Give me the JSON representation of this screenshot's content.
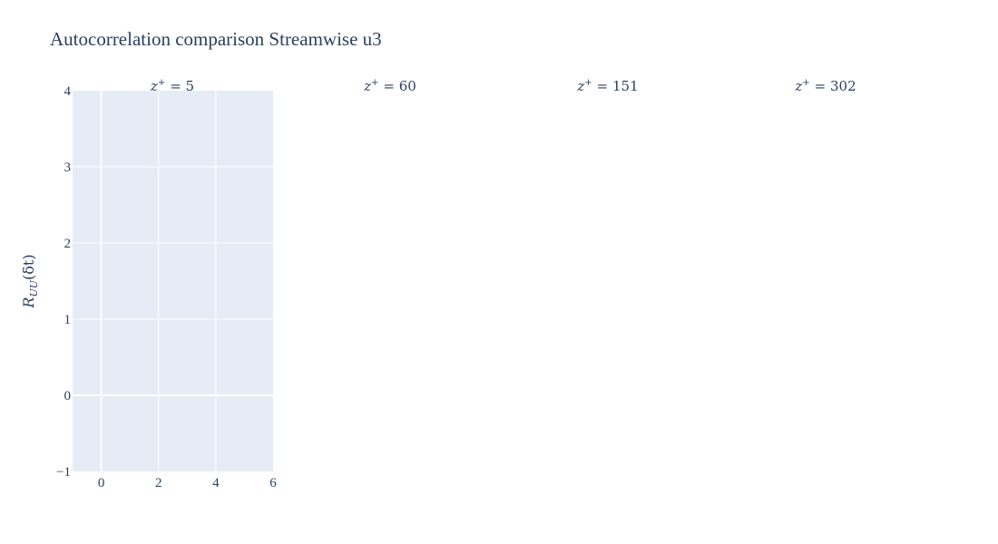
{
  "chart_data": {
    "type": "line",
    "title": "Autocorrelation comparison Streamwise u3",
    "ylabel": "R_UU(δt)",
    "ylabel_parts": [
      "R",
      "UU",
      "(δt)"
    ],
    "subplots": [
      {
        "label": "z⁺ = 5",
        "label_var": "z",
        "label_sup": "+",
        "label_eq": "= 5",
        "xlim": [
          -1,
          6
        ],
        "ylim": [
          -1,
          4
        ],
        "xticks": [
          0,
          2,
          4,
          6
        ],
        "yticks": [
          -1,
          0,
          1,
          2,
          3,
          4
        ],
        "ytick_labels": [
          "−1",
          "0",
          "1",
          "2",
          "3",
          "4"
        ],
        "grid": true,
        "series": []
      },
      {
        "label": "z⁺ = 60",
        "label_var": "z",
        "label_sup": "+",
        "label_eq": "= 60",
        "series": []
      },
      {
        "label": "z⁺ = 151",
        "label_var": "z",
        "label_sup": "+",
        "label_eq": "= 151",
        "series": []
      },
      {
        "label": "z⁺ = 302",
        "label_var": "z",
        "label_sup": "+",
        "label_eq": "= 302",
        "series": []
      }
    ]
  },
  "colors": {
    "plot_bg": "#e5ecf6",
    "grid": "#ffffff",
    "text": "#2a3f5f"
  }
}
